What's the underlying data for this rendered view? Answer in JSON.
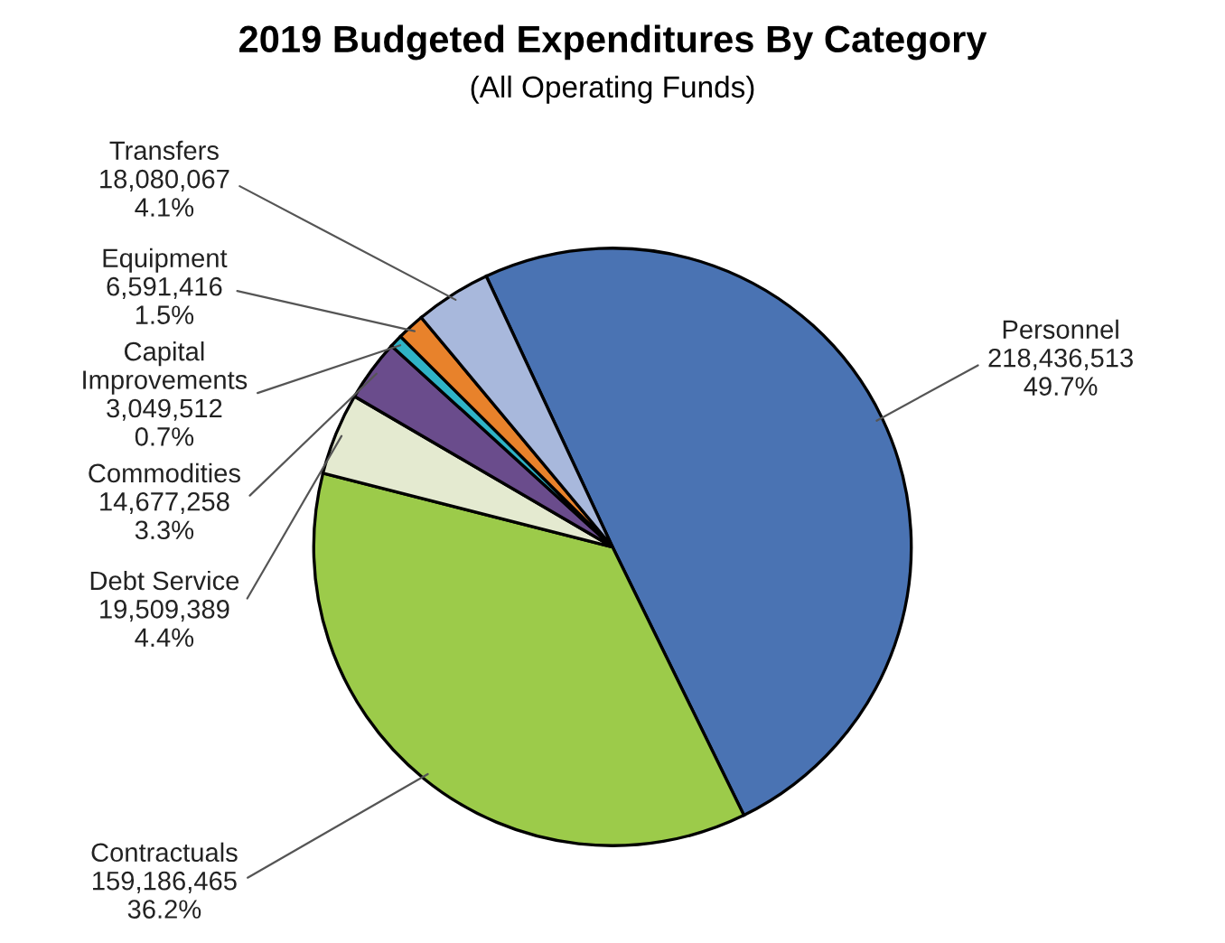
{
  "chart_data": {
    "type": "pie",
    "title": "2019 Budgeted Expenditures By Category",
    "subtitle": "(All Operating Funds)",
    "categories": [
      "Personnel",
      "Contractuals",
      "Debt Service",
      "Commodities",
      "Capital\nImprovements",
      "Equipment",
      "Transfers"
    ],
    "values": [
      218436513,
      159186465,
      19509389,
      14677258,
      3049512,
      6591416,
      18080067
    ],
    "value_labels": [
      "218,436,513\n49.7%",
      "159,186,465\n36.2%",
      "19,509,389\n4.4%",
      "14,677,258\n3.3%",
      "3,049,512\n0.7%",
      "6,591,416\n1.5%",
      "18,080,067\n4.1%"
    ],
    "colors": [
      "#4a73b3",
      "#9ccb4a",
      "#e4ead0",
      "#6a4c8c",
      "#2fb3c6",
      "#e8822b",
      "#a8b8dc"
    ],
    "legend": false
  }
}
